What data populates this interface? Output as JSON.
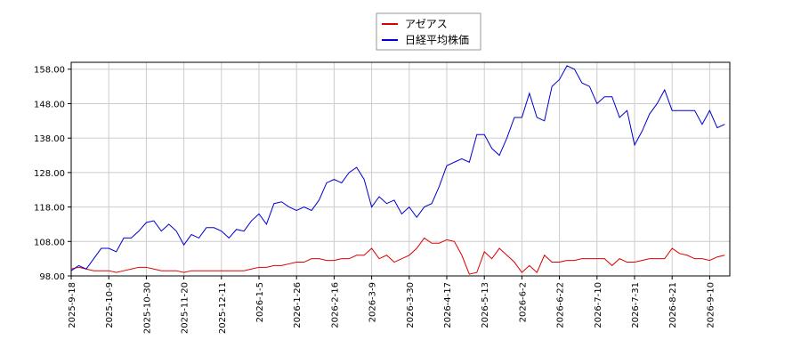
{
  "chart_data": {
    "type": "line",
    "legend": "top",
    "grid": true,
    "categories": [
      "2025-9-18",
      null,
      null,
      null,
      null,
      "2025-10-9",
      null,
      null,
      null,
      null,
      "2025-10-30",
      null,
      null,
      null,
      null,
      "2025-11-20",
      null,
      null,
      null,
      null,
      "2025-12-11",
      null,
      null,
      null,
      null,
      "2026-1-5",
      null,
      null,
      null,
      null,
      "2026-1-26",
      null,
      null,
      null,
      null,
      "2026-2-16",
      null,
      null,
      null,
      null,
      "2026-3-9",
      null,
      null,
      null,
      null,
      "2026-3-30",
      null,
      null,
      null,
      null,
      "2026-4-17",
      null,
      null,
      null,
      null,
      "2026-5-13",
      null,
      null,
      null,
      null,
      "2026-6-2",
      null,
      null,
      null,
      null,
      "2026-6-22",
      null,
      null,
      null,
      null,
      "2026-7-10",
      null,
      null,
      null,
      null,
      "2026-7-31",
      null,
      null,
      null,
      null,
      "2026-8-21",
      null,
      null,
      null,
      null,
      "2026-9-10",
      null,
      null
    ],
    "series": [
      {
        "name": "アゼアス",
        "color": "#dd0000",
        "values": [
          100,
          100.5,
          100,
          99.5,
          99.5,
          99.5,
          99,
          99.5,
          100,
          100.5,
          100.5,
          100,
          99.5,
          99.5,
          99.5,
          99,
          99.5,
          99.5,
          99.5,
          99.5,
          99.5,
          99.5,
          99.5,
          99.5,
          100,
          100.5,
          100.5,
          101,
          101,
          101.5,
          102,
          102,
          103,
          103,
          102.5,
          102.5,
          103,
          103,
          104,
          104,
          106,
          103,
          104,
          102,
          103,
          104,
          106,
          109,
          107.5,
          107.5,
          108.5,
          108,
          104,
          98.5,
          99,
          105,
          103,
          106,
          104,
          102,
          99,
          101,
          99,
          104,
          102,
          102,
          102.5,
          102.5,
          103,
          103,
          103,
          103,
          101,
          103,
          102,
          102,
          102.5,
          103,
          103,
          103,
          106,
          104.5,
          104,
          103,
          103,
          102.5,
          103.5,
          104
        ]
      },
      {
        "name": "日経平均株価",
        "color": "#0000cc",
        "values": [
          99.5,
          101,
          100,
          103,
          106,
          106,
          105,
          109,
          109,
          111,
          113.5,
          114,
          111,
          113,
          111,
          107,
          110,
          109,
          112,
          112,
          111,
          109,
          111.5,
          111,
          114,
          116,
          113,
          119,
          119.5,
          118,
          117,
          118,
          117,
          120,
          125,
          126,
          125,
          128,
          129.5,
          126,
          118,
          121,
          119,
          120,
          116,
          118,
          115,
          118,
          119,
          124,
          130,
          131,
          132,
          131,
          139,
          139,
          135,
          133,
          138,
          144,
          144,
          151,
          144,
          143,
          153,
          155,
          159,
          158,
          154,
          153,
          148,
          150,
          150,
          144,
          146,
          136,
          140,
          145,
          148,
          152,
          146,
          146,
          146,
          146,
          142,
          146,
          141,
          142
        ]
      }
    ],
    "ylim": [
      98,
      160
    ],
    "yticks": [
      {
        "value": 98,
        "label": "98.00"
      },
      {
        "value": 108,
        "label": "108.00"
      },
      {
        "value": 118,
        "label": "118.00"
      },
      {
        "value": 128,
        "label": "128.00"
      },
      {
        "value": 138,
        "label": "138.00"
      },
      {
        "value": 148,
        "label": "148.00"
      },
      {
        "value": 158,
        "label": "158.00"
      }
    ]
  }
}
